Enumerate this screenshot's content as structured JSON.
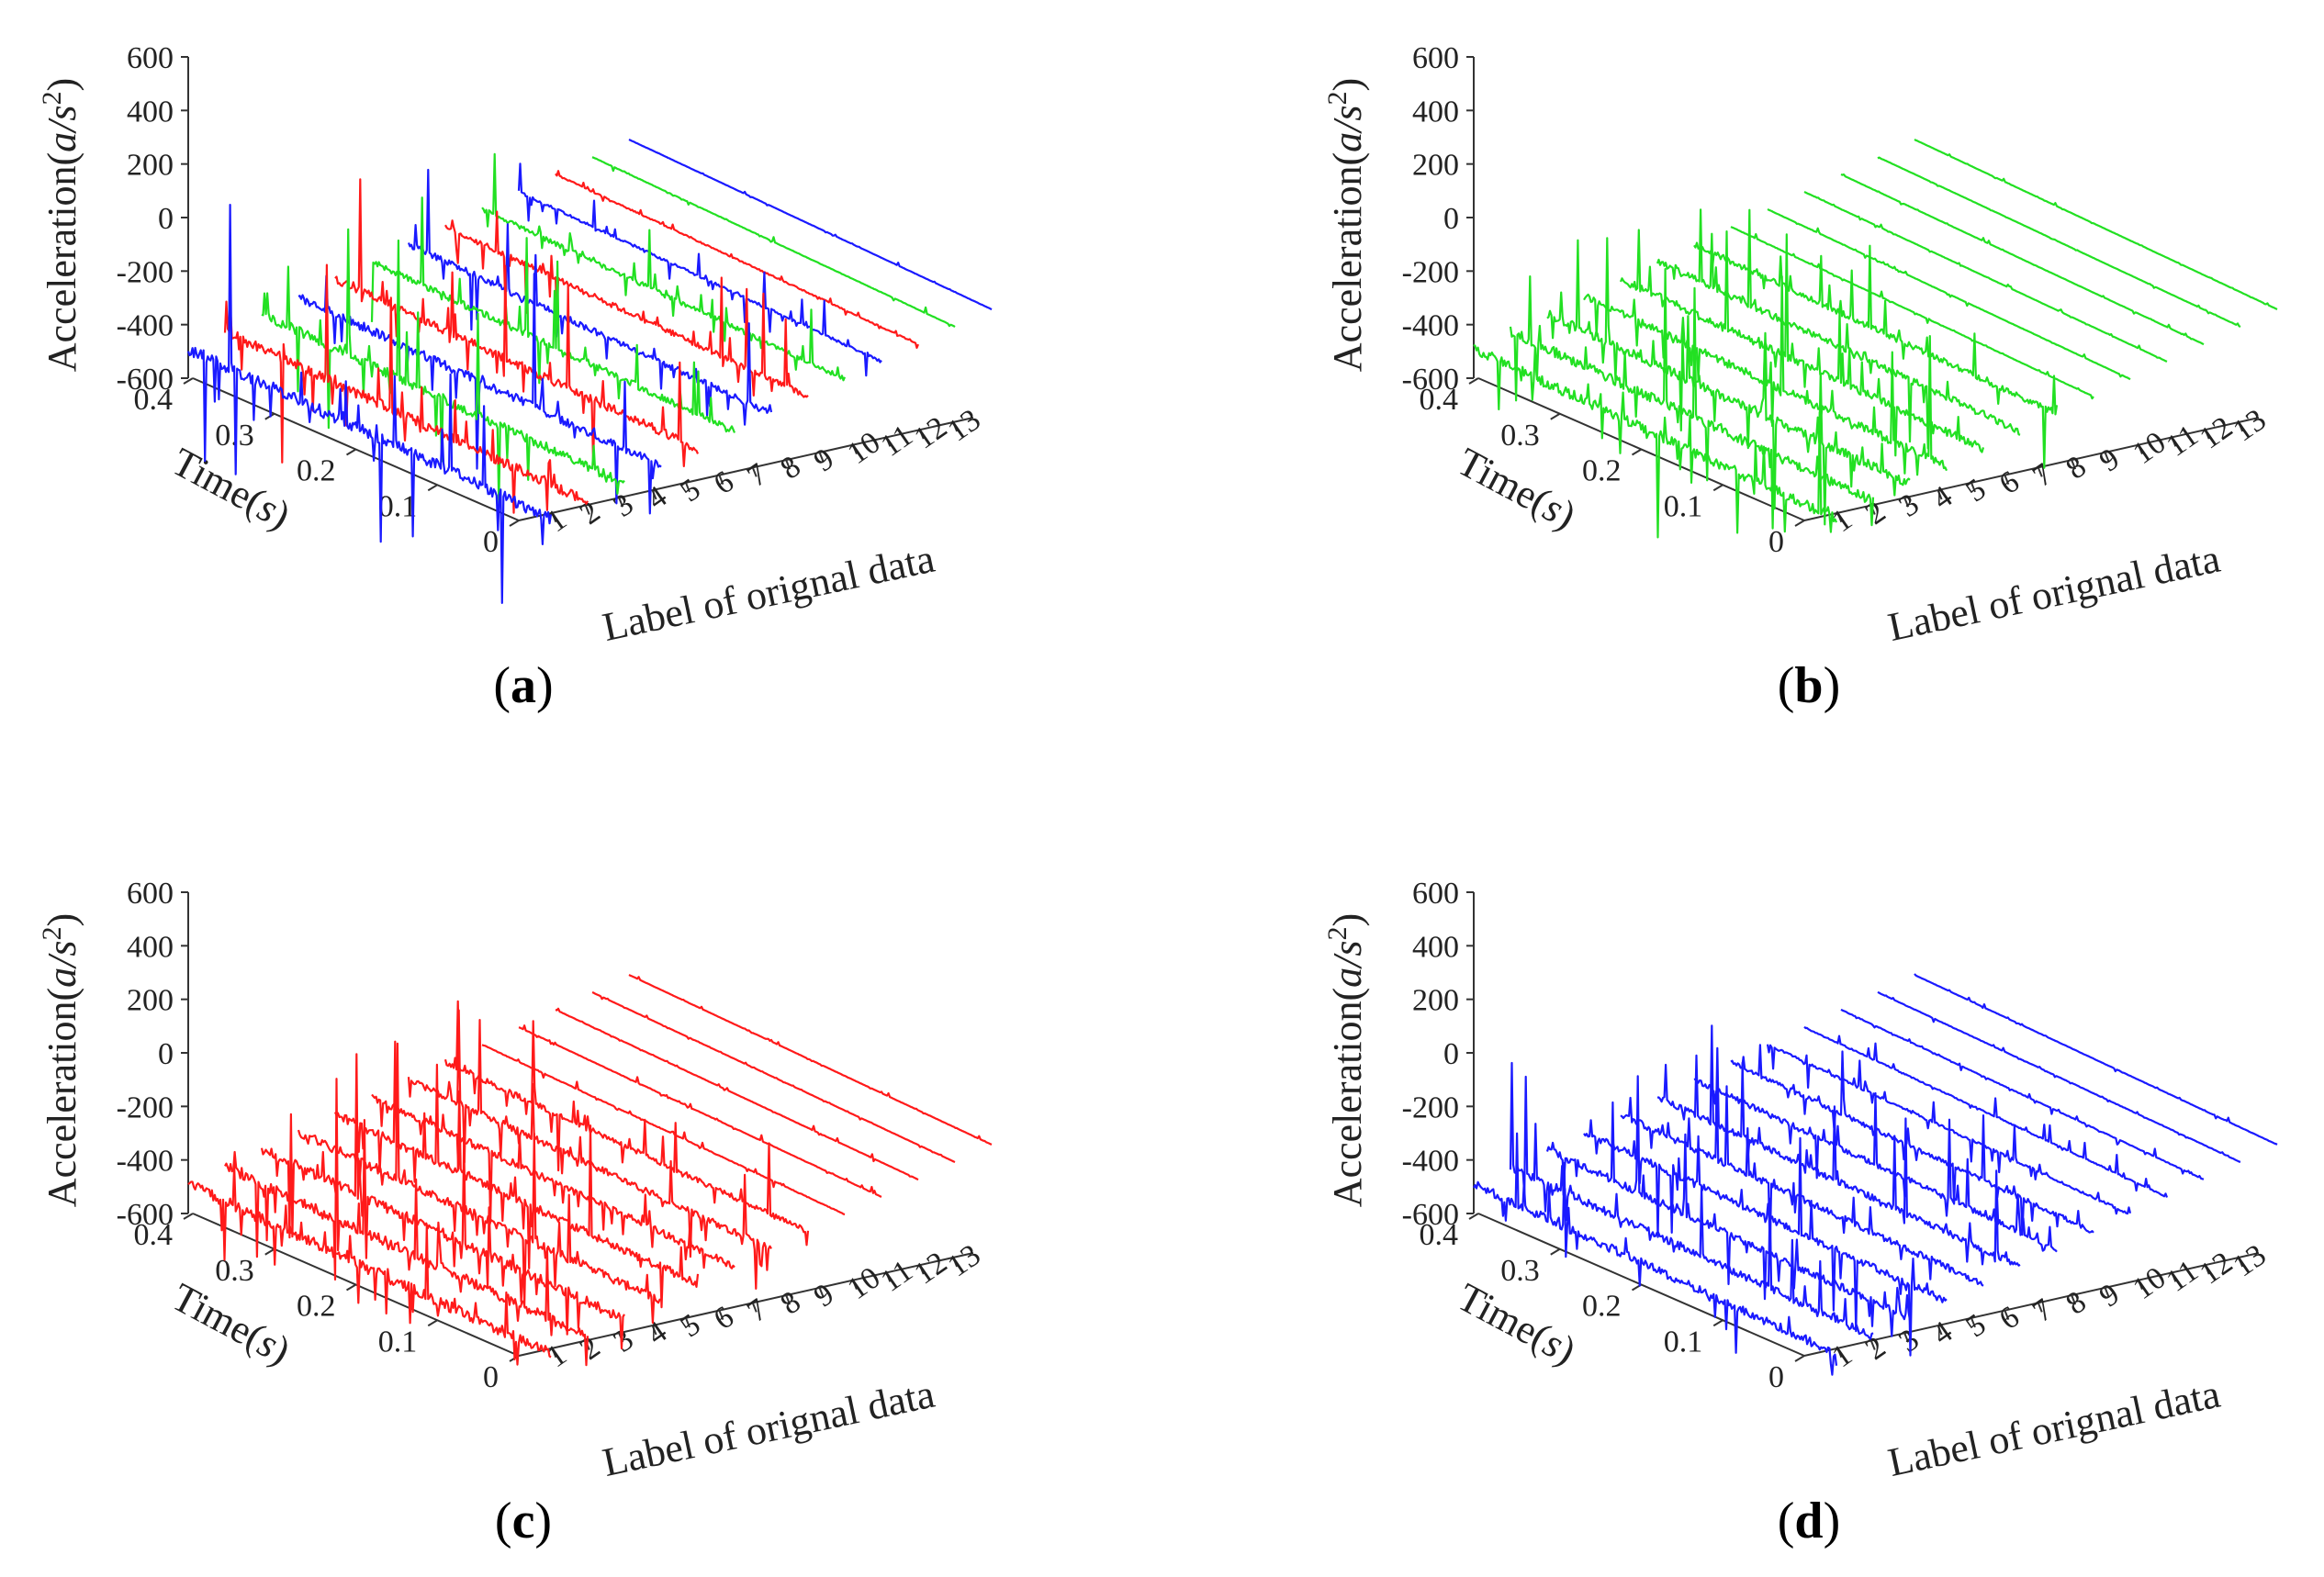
{
  "figure": {
    "ylabel_main": "Acceleration(",
    "ylabel_unit": "a/s",
    "ylabel_exp": "2",
    "ylabel_close": ")",
    "time_label_main": "Time(",
    "time_label_unit": "s",
    "time_label_close": ")",
    "label_axis_title": "Label of orignal data"
  },
  "chart_data": [
    {
      "type": "line",
      "panel": "a",
      "caption": "a",
      "title": "",
      "series_colors": [
        "#1a1aff",
        "#ff1a1a",
        "#22e022"
      ],
      "zlabel": "Acceleration(a/s2)",
      "ylabel": "Time(s)",
      "xlabel": "Label of orignal data",
      "zlim": [
        -600,
        600
      ],
      "zticks": [
        600,
        400,
        200,
        0,
        -200,
        -400,
        -600
      ],
      "ylim": [
        0,
        0.4
      ],
      "yticks": [
        0.4,
        0.3,
        0.2,
        0.1,
        0
      ],
      "labels": [
        1,
        2,
        3,
        4,
        5,
        6,
        7,
        8,
        9,
        10,
        11,
        12,
        13
      ],
      "series": [
        {
          "label": 1,
          "peak": 560
        },
        {
          "label": 2,
          "peak": 500
        },
        {
          "label": 3,
          "peak": 450
        },
        {
          "label": 4,
          "peak": 420
        },
        {
          "label": 5,
          "peak": 400
        },
        {
          "label": 6,
          "peak": 320
        },
        {
          "label": 7,
          "peak": 300
        },
        {
          "label": 8,
          "peak": 260
        },
        {
          "label": 9,
          "peak": 220
        },
        {
          "label": 10,
          "peak": 120
        },
        {
          "label": 11,
          "peak": 60
        },
        {
          "label": 12,
          "peak": 20
        },
        {
          "label": 13,
          "peak": 10
        }
      ]
    },
    {
      "type": "line",
      "panel": "b",
      "caption": "b",
      "series_colors": [
        "#22e022"
      ],
      "zlabel": "Acceleration(a/s2)",
      "ylabel": "Time(s)",
      "xlabel": "Label of orignal data",
      "zlim": [
        -600,
        600
      ],
      "zticks": [
        600,
        400,
        200,
        0,
        -200,
        -400,
        -600
      ],
      "ylim": [
        0,
        0.4
      ],
      "yticks": [
        0.4,
        0.3,
        0.2,
        0.1,
        0
      ],
      "labels": [
        1,
        2,
        3,
        4,
        5,
        6,
        7,
        8,
        9,
        10,
        11,
        12,
        13
      ],
      "series": [
        {
          "label": 1,
          "peak": 480
        },
        {
          "label": 2,
          "peak": 470
        },
        {
          "label": 3,
          "peak": 430
        },
        {
          "label": 4,
          "peak": 400
        },
        {
          "label": 5,
          "peak": 380
        },
        {
          "label": 6,
          "peak": 330
        },
        {
          "label": 7,
          "peak": 280
        },
        {
          "label": 8,
          "peak": 20
        },
        {
          "label": 9,
          "peak": 15
        },
        {
          "label": 10,
          "peak": 10
        },
        {
          "label": 11,
          "peak": 10
        },
        {
          "label": 12,
          "peak": 8
        },
        {
          "label": 13,
          "peak": 8
        }
      ]
    },
    {
      "type": "line",
      "panel": "c",
      "caption": "c",
      "series_colors": [
        "#ff1a1a"
      ],
      "zlabel": "Acceleration(a/s2)",
      "ylabel": "Time(s)",
      "xlabel": "Label of orignal data",
      "zlim": [
        -600,
        600
      ],
      "zticks": [
        600,
        400,
        200,
        0,
        -200,
        -400,
        -600
      ],
      "ylim": [
        0,
        0.4
      ],
      "yticks": [
        0.4,
        0.3,
        0.2,
        0.1,
        0
      ],
      "labels": [
        1,
        2,
        3,
        4,
        5,
        6,
        7,
        8,
        9,
        10,
        11,
        12,
        13
      ],
      "series": [
        {
          "label": 1,
          "peak": 520
        },
        {
          "label": 2,
          "peak": 500
        },
        {
          "label": 3,
          "peak": 460
        },
        {
          "label": 4,
          "peak": 430
        },
        {
          "label": 5,
          "peak": 400
        },
        {
          "label": 6,
          "peak": 340
        },
        {
          "label": 7,
          "peak": 300
        },
        {
          "label": 8,
          "peak": 260
        },
        {
          "label": 9,
          "peak": 30
        },
        {
          "label": 10,
          "peak": 20
        },
        {
          "label": 11,
          "peak": 15
        },
        {
          "label": 12,
          "peak": 10
        },
        {
          "label": 13,
          "peak": 10
        }
      ]
    },
    {
      "type": "line",
      "panel": "d",
      "caption": "d",
      "series_colors": [
        "#1a1aff"
      ],
      "zlabel": "Acceleration(a/s2)",
      "ylabel": "Time(s)",
      "xlabel": "Label of orignal data",
      "zlim": [
        -600,
        600
      ],
      "zticks": [
        600,
        400,
        200,
        0,
        -200,
        -400,
        -600
      ],
      "ylim": [
        0,
        0.4
      ],
      "yticks": [
        0.4,
        0.3,
        0.2,
        0.1,
        0
      ],
      "labels": [
        1,
        2,
        3,
        4,
        5,
        6,
        7,
        8,
        9,
        10,
        11,
        12,
        13
      ],
      "series": [
        {
          "label": 1,
          "peak": 400
        },
        {
          "label": 2,
          "peak": 380
        },
        {
          "label": 3,
          "peak": 360
        },
        {
          "label": 4,
          "peak": 340
        },
        {
          "label": 5,
          "peak": 320
        },
        {
          "label": 6,
          "peak": 300
        },
        {
          "label": 7,
          "peak": 260
        },
        {
          "label": 8,
          "peak": 220
        },
        {
          "label": 9,
          "peak": 120
        },
        {
          "label": 10,
          "peak": 60
        },
        {
          "label": 11,
          "peak": 30
        },
        {
          "label": 12,
          "peak": 20
        },
        {
          "label": 13,
          "peak": 15
        }
      ]
    }
  ]
}
